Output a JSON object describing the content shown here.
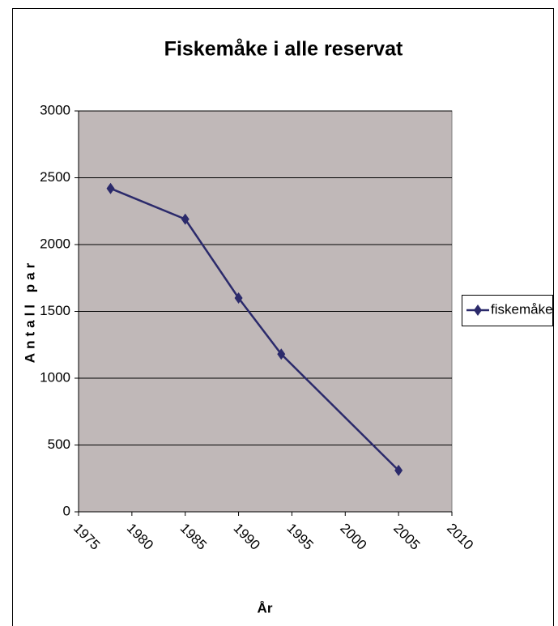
{
  "chart_data": {
    "type": "line",
    "title": "Fiskemåke i alle reservat",
    "xlabel": "År",
    "ylabel": "Antall par",
    "x": [
      1978,
      1985,
      1990,
      1994,
      2005
    ],
    "series": [
      {
        "name": "fiskemåke",
        "color": "#2b2a6b",
        "values": [
          2420,
          2190,
          1600,
          1180,
          310
        ]
      }
    ],
    "xlim": [
      1975,
      2010
    ],
    "xticks": [
      1975,
      1980,
      1985,
      1990,
      1995,
      2000,
      2005,
      2010
    ],
    "ylim": [
      0,
      3000
    ],
    "yticks": [
      0,
      500,
      1000,
      1500,
      2000,
      2500,
      3000
    ],
    "grid": true,
    "legend": "right"
  }
}
